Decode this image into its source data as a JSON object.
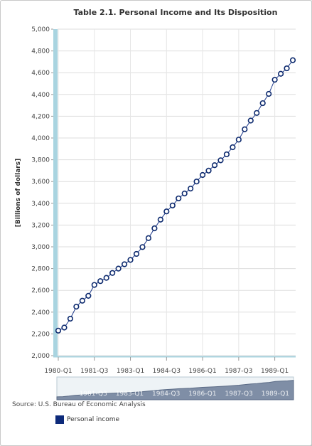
{
  "chart_data": {
    "type": "line",
    "title": "Table 2.1. Personal Income and Its Disposition",
    "ylabel": "[Billions of dollars]",
    "xlabel": "",
    "ylim": [
      2000,
      5000
    ],
    "yticks": [
      2000,
      2200,
      2400,
      2600,
      2800,
      3000,
      3200,
      3400,
      3600,
      3800,
      4000,
      4200,
      4400,
      4600,
      4800,
      5000
    ],
    "ytick_labels": [
      "2,000",
      "2,200",
      "2,400",
      "2,600",
      "2,800",
      "3,000",
      "3,200",
      "3,400",
      "3,600",
      "3,800",
      "4,000",
      "4,200",
      "4,400",
      "4,600",
      "4,800",
      "5,000"
    ],
    "xtick_labels": [
      "1980-Q1",
      "1981-Q3",
      "1983-Q1",
      "1984-Q3",
      "1986-Q1",
      "1987-Q3",
      "1989-Q1"
    ],
    "x": [
      "1980-Q1",
      "1980-Q2",
      "1980-Q3",
      "1980-Q4",
      "1981-Q1",
      "1981-Q2",
      "1981-Q3",
      "1981-Q4",
      "1982-Q1",
      "1982-Q2",
      "1982-Q3",
      "1982-Q4",
      "1983-Q1",
      "1983-Q2",
      "1983-Q3",
      "1983-Q4",
      "1984-Q1",
      "1984-Q2",
      "1984-Q3",
      "1984-Q4",
      "1985-Q1",
      "1985-Q2",
      "1985-Q3",
      "1985-Q4",
      "1986-Q1",
      "1986-Q2",
      "1986-Q3",
      "1986-Q4",
      "1987-Q1",
      "1987-Q2",
      "1987-Q3",
      "1987-Q4",
      "1988-Q1",
      "1988-Q2",
      "1988-Q3",
      "1988-Q4",
      "1989-Q1",
      "1989-Q2",
      "1989-Q3",
      "1989-Q4"
    ],
    "series": [
      {
        "name": "Personal income",
        "values": [
          2230,
          2258,
          2340,
          2450,
          2505,
          2550,
          2650,
          2685,
          2715,
          2760,
          2800,
          2840,
          2880,
          2935,
          2998,
          3080,
          3170,
          3250,
          3325,
          3380,
          3445,
          3490,
          3535,
          3600,
          3660,
          3700,
          3750,
          3795,
          3850,
          3915,
          3985,
          4080,
          4160,
          4230,
          4320,
          4405,
          4535,
          4590,
          4640,
          4715
        ]
      }
    ],
    "grid": true,
    "legend_position": "bottom-left",
    "colors": {
      "line": "#1f3a8a",
      "marker_stroke": "#0d2a6e",
      "marker_fill": "#ffffff",
      "legend_swatch": "#0d2a7a",
      "axis_band": "#a9d4e0",
      "navigator_fill": "#7f8ea6",
      "gridline": "#dddddd"
    }
  },
  "navigator_labels": [
    "1981-Q3",
    "1983-Q1",
    "1984-Q3",
    "1986-Q1",
    "1987-Q3",
    "1989-Q1"
  ],
  "source": "Source: U.S. Bureau of Economic Analysis"
}
